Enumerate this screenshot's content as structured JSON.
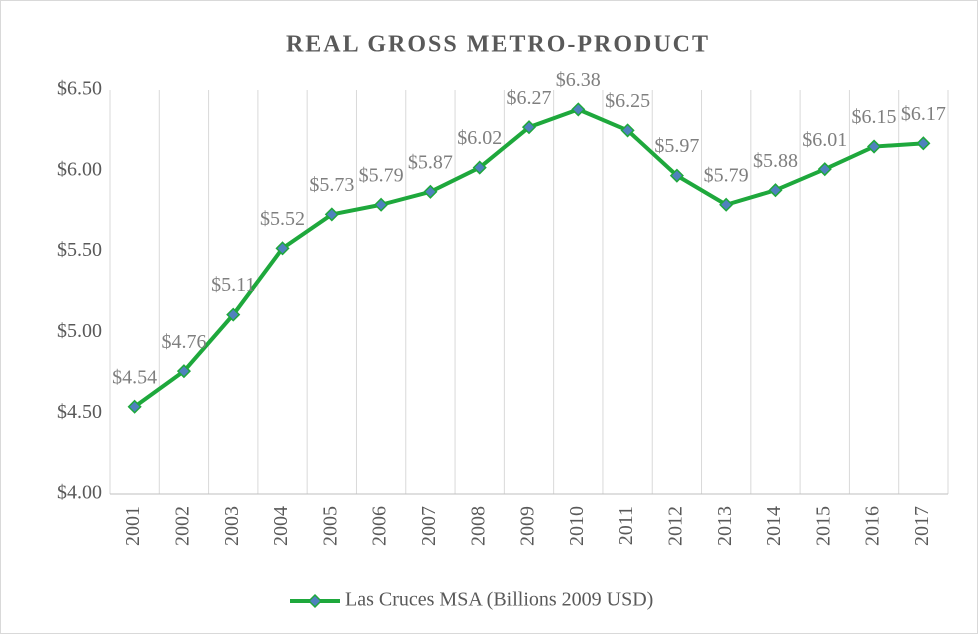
{
  "chart_data": {
    "type": "line",
    "title": "REAL GROSS METRO-PRODUCT",
    "categories": [
      "2001",
      "2002",
      "2003",
      "2004",
      "2005",
      "2006",
      "2007",
      "2008",
      "2009",
      "2010",
      "2011",
      "2012",
      "2013",
      "2014",
      "2015",
      "2016",
      "2017"
    ],
    "series": [
      {
        "name": "Las Cruces MSA (Billions 2009 USD)",
        "color": "#1ea83c",
        "marker_color": "#4f81bd",
        "values": [
          4.54,
          4.76,
          5.11,
          5.52,
          5.73,
          5.79,
          5.87,
          6.02,
          6.27,
          6.38,
          6.25,
          5.97,
          5.79,
          5.88,
          6.01,
          6.15,
          6.17
        ],
        "value_labels": [
          "$4.54",
          "$4.76",
          "$5.11",
          "$5.52",
          "$5.73",
          "$5.79",
          "$5.87",
          "$6.02",
          "$6.27",
          "$6.38",
          "$6.25",
          "$5.97",
          "$5.79",
          "$5.88",
          "$6.01",
          "$6.15",
          "$6.17"
        ]
      }
    ],
    "ylim": [
      4.0,
      6.5
    ],
    "yticks": [
      {
        "value": 4.0,
        "label": "$4.00"
      },
      {
        "value": 4.5,
        "label": "$4.50"
      },
      {
        "value": 5.0,
        "label": "$5.00"
      },
      {
        "value": 5.5,
        "label": "$5.50"
      },
      {
        "value": 6.0,
        "label": "$6.00"
      },
      {
        "value": 6.5,
        "label": "$6.50"
      }
    ],
    "grid": true,
    "legend": "bottom"
  }
}
